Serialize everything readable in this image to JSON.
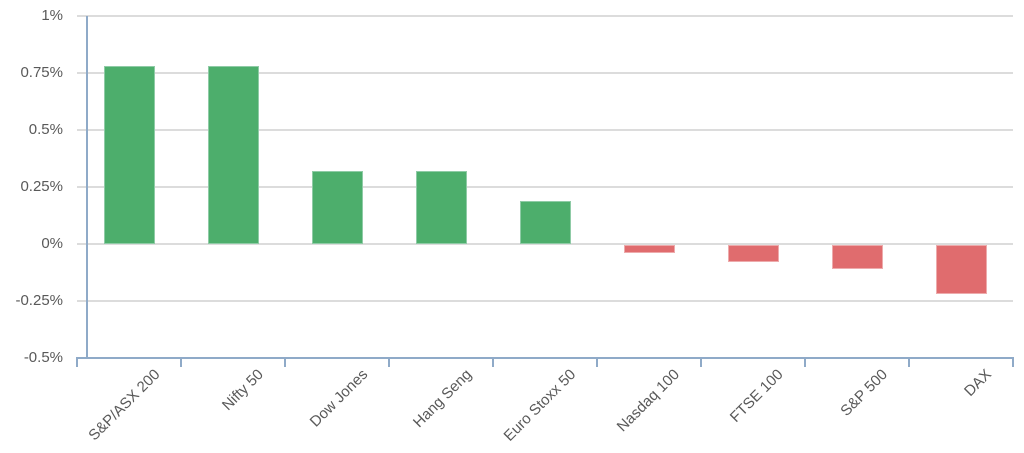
{
  "chart_data": {
    "type": "bar",
    "title": "",
    "xlabel": "",
    "ylabel": "",
    "categories": [
      "S&P/ASX 200",
      "Nifty 50",
      "Dow Jones",
      "Hang Seng",
      "Euro Stoxx 50",
      "Nasdaq 100",
      "FTSE 100",
      "S&P 500",
      "DAX"
    ],
    "values": [
      0.78,
      0.78,
      0.32,
      0.32,
      0.19,
      -0.04,
      -0.08,
      -0.11,
      -0.22
    ],
    "units": "percent",
    "ylim": [
      -0.5,
      1.0
    ],
    "ytick_step": 0.25,
    "ytick_labels": [
      "1%",
      "0.75%",
      "0.5%",
      "0.25%",
      "0%",
      "-0.25%",
      "-0.5%"
    ],
    "grid": true,
    "legend": false,
    "x_labels_rotation_deg": 45
  },
  "colors": {
    "positive_bar": "#4dae6c",
    "positive_bar_border": "#8fcba6",
    "negative_bar": "#e06c6e",
    "negative_bar_border": "#edabac",
    "gridline": "#dcdcdc",
    "axis": "#8faac8",
    "label_text": "#595959",
    "background": "#ffffff"
  }
}
